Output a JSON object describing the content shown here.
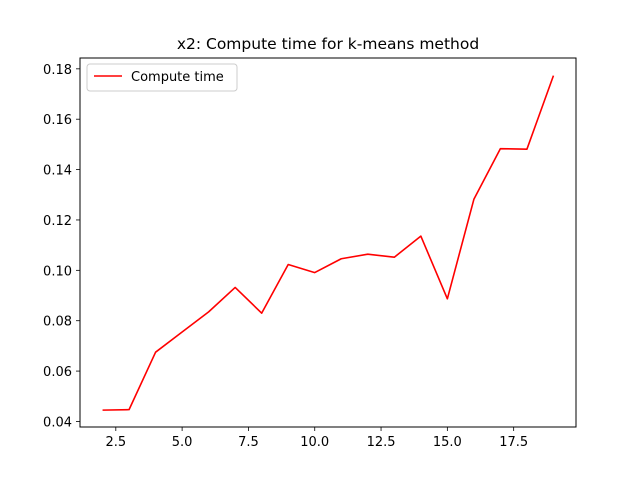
{
  "chart_data": {
    "type": "line",
    "title": "x2: Compute time for k-means method",
    "xlabel": "",
    "ylabel": "",
    "xlim": [
      1.15,
      19.85
    ],
    "ylim": [
      0.0378,
      0.1843
    ],
    "xticks": [
      2.5,
      5.0,
      7.5,
      10.0,
      12.5,
      15.0,
      17.5
    ],
    "xtick_labels": [
      "2.5",
      "5.0",
      "7.5",
      "10.0",
      "12.5",
      "15.0",
      "17.5"
    ],
    "yticks": [
      0.04,
      0.06,
      0.08,
      0.1,
      0.12,
      0.14,
      0.16,
      0.18
    ],
    "ytick_labels": [
      "0.04",
      "0.06",
      "0.08",
      "0.10",
      "0.12",
      "0.14",
      "0.16",
      "0.18"
    ],
    "grid": false,
    "legend_position": "top-left",
    "series": [
      {
        "name": "Compute time",
        "color": "#ff0000",
        "x": [
          2,
          3,
          4,
          5,
          6,
          7,
          8,
          9,
          10,
          11,
          12,
          13,
          14,
          15,
          16,
          17,
          18,
          19
        ],
        "y": [
          0.0445,
          0.0447,
          0.0675,
          0.0755,
          0.0835,
          0.0932,
          0.083,
          0.1023,
          0.0991,
          0.1046,
          0.1064,
          0.1052,
          0.1136,
          0.0887,
          0.1282,
          0.1483,
          0.1481,
          0.1773
        ]
      }
    ]
  }
}
